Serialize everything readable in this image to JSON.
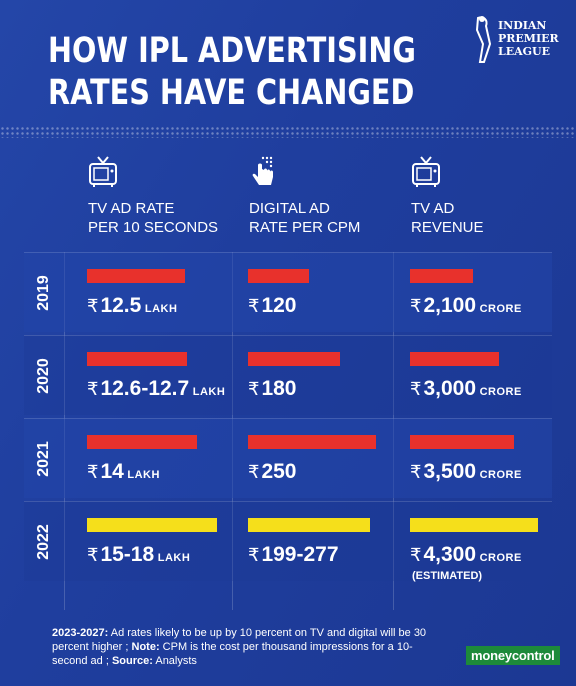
{
  "header": {
    "title_line1": "HOW IPL ADVERTISING",
    "title_line2": "RATES HAVE CHANGED",
    "logo_line1": "INDIAN",
    "logo_line2": "PREMIER",
    "logo_line3": "LEAGUE"
  },
  "columns": [
    {
      "icon": "tv-icon",
      "line1": "TV AD RATE",
      "line2": "PER 10 SECONDS"
    },
    {
      "icon": "tap-hand-icon",
      "line1": "DIGITAL AD",
      "line2": "RATE PER CPM"
    },
    {
      "icon": "tv-icon",
      "line1": "TV AD",
      "line2": "REVENUE"
    }
  ],
  "currency_symbol": "₹",
  "colors": {
    "background": "#1f3e9e",
    "bar_past": "#e8312c",
    "bar_estimate": "#f5df1b"
  },
  "chart_data": {
    "type": "table",
    "years": [
      "2019",
      "2020",
      "2021",
      "2022"
    ],
    "series": [
      {
        "name": "TV AD RATE PER 10 SECONDS",
        "unit": "LAKH",
        "values": [
          12.5,
          12.65,
          14,
          16.5
        ],
        "labels": [
          "12.5",
          "12.6-12.7",
          "14",
          "15-18"
        ]
      },
      {
        "name": "DIGITAL AD RATE PER CPM",
        "unit": "",
        "values": [
          120,
          180,
          250,
          238
        ],
        "labels": [
          "120",
          "180",
          "250",
          "199-277"
        ]
      },
      {
        "name": "TV AD REVENUE",
        "unit": "CRORE",
        "values": [
          2100,
          3000,
          3500,
          4300
        ],
        "labels": [
          "2,100",
          "3,000",
          "3,500",
          "4,300"
        ]
      }
    ],
    "estimated_note": "(ESTIMATED)"
  },
  "footer": {
    "label1": "2023-2027:",
    "text1": " Ad rates likely to be up by 10 percent on TV and digital will be 30 percent higher ; ",
    "label2": "Note:",
    "text2": " CPM is the cost per thousand impressions for a 10-second ad ; ",
    "label3": "Source:",
    "text3": " Analysts",
    "brand": "moneycontrol"
  }
}
